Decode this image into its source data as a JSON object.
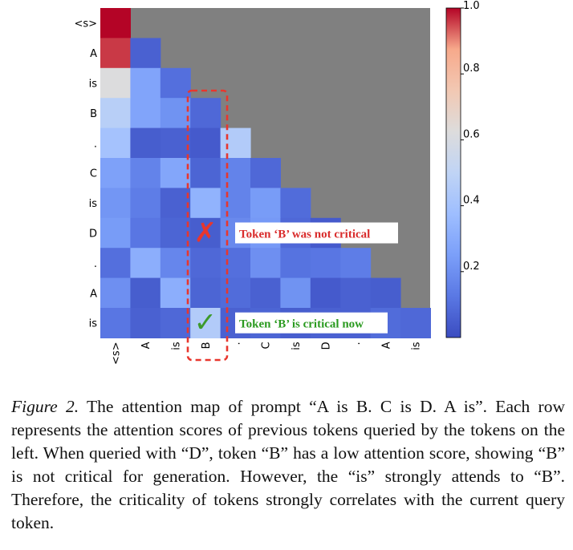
{
  "chart_data": {
    "type": "heatmap",
    "row_labels": [
      "<s>",
      "A",
      "is",
      "B",
      ".",
      "C",
      "is",
      "D",
      ".",
      "A",
      "is"
    ],
    "col_labels": [
      "<s>",
      "A",
      "is",
      "B",
      ".",
      "C",
      "is",
      "D",
      ".",
      "A",
      "is"
    ],
    "values": [
      [
        1.0
      ],
      [
        0.96,
        0.06
      ],
      [
        0.62,
        0.27,
        0.1
      ],
      [
        0.47,
        0.27,
        0.21,
        0.08
      ],
      [
        0.4,
        0.05,
        0.06,
        0.04,
        0.45
      ],
      [
        0.26,
        0.16,
        0.28,
        0.07,
        0.16,
        0.08
      ],
      [
        0.22,
        0.14,
        0.06,
        0.33,
        0.16,
        0.24,
        0.09
      ],
      [
        0.24,
        0.12,
        0.07,
        0.05,
        0.18,
        0.23,
        0.08,
        0.04
      ],
      [
        0.1,
        0.31,
        0.17,
        0.08,
        0.1,
        0.2,
        0.11,
        0.12,
        0.14
      ],
      [
        0.2,
        0.05,
        0.31,
        0.07,
        0.09,
        0.06,
        0.21,
        0.04,
        0.06,
        0.05
      ],
      [
        0.12,
        0.06,
        0.08,
        0.45,
        0.06,
        0.07,
        0.05,
        0.06,
        0.06,
        0.09,
        0.08
      ]
    ],
    "masked_color": "#808080",
    "colormap": "coolwarm",
    "colorbar": {
      "range": [
        0,
        1.0
      ],
      "ticks": [
        0.2,
        0.4,
        0.6,
        0.8,
        1.0
      ],
      "tick_labels": [
        "0.2",
        "0.4",
        "0.6",
        "0.8",
        "1.0"
      ]
    },
    "highlight_column": "B",
    "annotations": [
      {
        "row": "D",
        "col": "B",
        "marker": "✗",
        "marker_color": "#e8362d",
        "text": "Token ‘B’ was not critical",
        "text_color": "#d92b2b"
      },
      {
        "row": "is",
        "col": "B",
        "marker": "✓",
        "marker_color": "#3c9a2b",
        "text": "Token ‘B’ is critical now",
        "text_color": "#2a9a1f"
      }
    ]
  },
  "caption": {
    "figure_label": "Figure 2.",
    "text": "The attention map of prompt “A is B. C is D. A is”. Each row represents the attention scores of previous tokens queried by the tokens on the left.  When queried with “D”, token “B” has a low attention score, showing “B” is not critical for generation. However, the “is” strongly attends to “B”. Therefore, the criticality of tokens strongly correlates with the current query token."
  }
}
